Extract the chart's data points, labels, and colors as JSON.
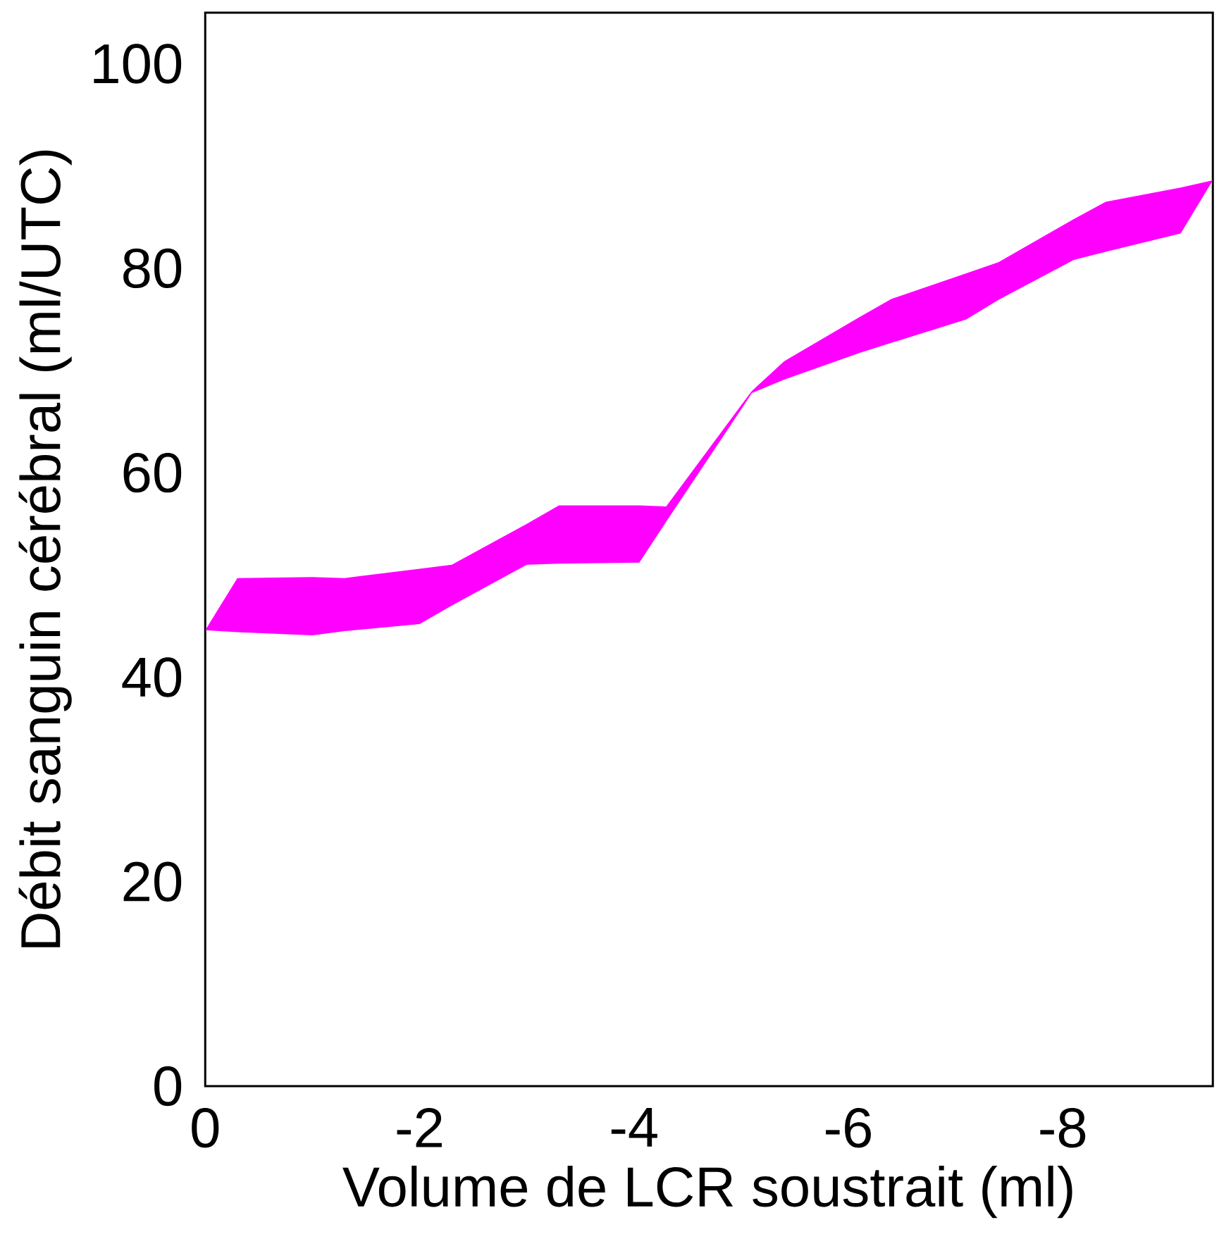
{
  "chart_data": {
    "type": "area",
    "xlabel": "Volume de LCR soustrait (ml)",
    "ylabel": "Débit sanguin cérébral (ml/UTC)",
    "xlim": [
      0,
      -9.4
    ],
    "xticks": [
      0,
      -2,
      -4,
      -6,
      -8
    ],
    "ylim": [
      0,
      105
    ],
    "yticks": [
      0,
      20,
      40,
      60,
      80,
      100
    ],
    "series": [
      {
        "color": "#ff00ff",
        "x": [
          0,
          -0.3,
          -1.0,
          -1.3,
          -2.0,
          -2.3,
          -3.0,
          -3.3,
          -4.05,
          -4.3,
          -5.0,
          -5.1,
          -5.4,
          -6.1,
          -6.4,
          -7.1,
          -7.4,
          -8.1,
          -8.4,
          -9.1,
          -9.4
        ],
        "values": [
          null,
          null,
          null,
          null,
          null,
          null,
          null,
          null,
          null,
          null,
          null,
          null,
          null,
          null,
          null,
          null,
          null,
          null,
          null,
          null,
          null
        ],
        "upper": [
          44.6,
          49.7,
          49.8,
          49.7,
          50.6,
          51.0,
          55.0,
          56.8,
          56.8,
          56.7,
          66.6,
          68.0,
          70.9,
          75.2,
          77.0,
          79.5,
          80.6,
          84.8,
          86.5,
          87.9,
          88.6
        ],
        "lower": [
          44.6,
          44.4,
          44.1,
          44.5,
          45.2,
          47.0,
          51.0,
          51.1,
          51.2,
          55.2,
          66.2,
          67.8,
          69.1,
          71.7,
          72.7,
          75.0,
          76.9,
          80.8,
          81.6,
          83.4,
          88.6
        ]
      }
    ]
  }
}
